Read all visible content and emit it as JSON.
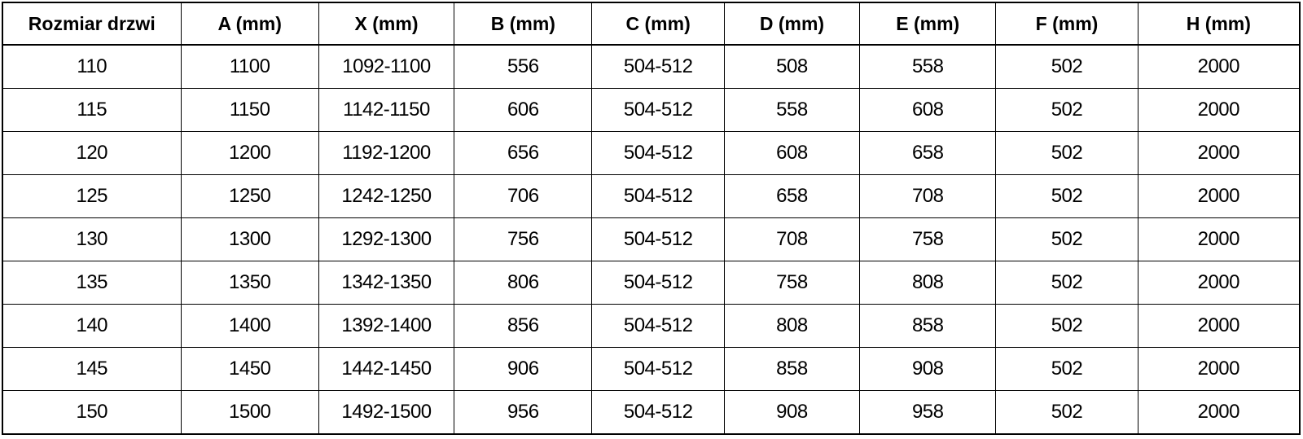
{
  "table": {
    "headers": [
      "Rozmiar drzwi",
      "A (mm)",
      "X (mm)",
      "B (mm)",
      "C (mm)",
      "D (mm)",
      "E (mm)",
      "F (mm)",
      "H (mm)"
    ],
    "rows": [
      [
        "110",
        "1100",
        "1092-1100",
        "556",
        "504-512",
        "508",
        "558",
        "502",
        "2000"
      ],
      [
        "115",
        "1150",
        "1142-1150",
        "606",
        "504-512",
        "558",
        "608",
        "502",
        "2000"
      ],
      [
        "120",
        "1200",
        "1192-1200",
        "656",
        "504-512",
        "608",
        "658",
        "502",
        "2000"
      ],
      [
        "125",
        "1250",
        "1242-1250",
        "706",
        "504-512",
        "658",
        "708",
        "502",
        "2000"
      ],
      [
        "130",
        "1300",
        "1292-1300",
        "756",
        "504-512",
        "708",
        "758",
        "502",
        "2000"
      ],
      [
        "135",
        "1350",
        "1342-1350",
        "806",
        "504-512",
        "758",
        "808",
        "502",
        "2000"
      ],
      [
        "140",
        "1400",
        "1392-1400",
        "856",
        "504-512",
        "808",
        "858",
        "502",
        "2000"
      ],
      [
        "145",
        "1450",
        "1442-1450",
        "906",
        "504-512",
        "858",
        "908",
        "502",
        "2000"
      ],
      [
        "150",
        "1500",
        "1492-1500",
        "956",
        "504-512",
        "908",
        "958",
        "502",
        "2000"
      ]
    ]
  },
  "colors": {
    "border": "#000000",
    "text": "#000000",
    "background": "#ffffff"
  }
}
